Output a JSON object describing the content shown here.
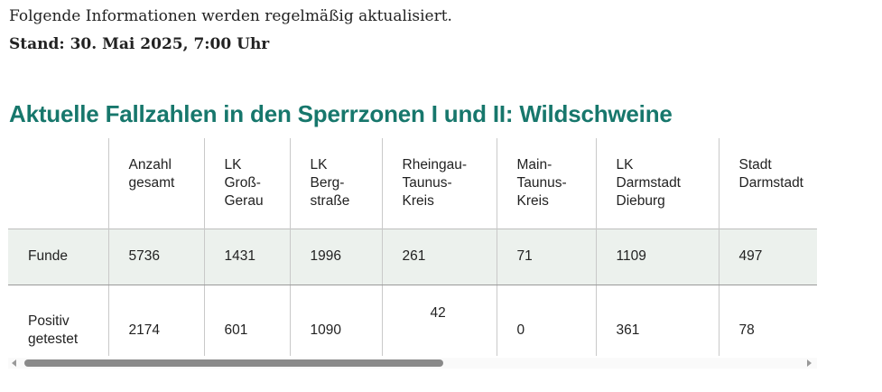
{
  "intro": "Folgende Informationen werden regelmäßig aktualisiert.",
  "stand": "Stand: 30. Mai 2025, 7:00 Uhr",
  "title": "Aktuelle Fallzahlen in den Sperrzonen I und II: Wildschweine",
  "table": {
    "headers": [
      "",
      "Anzahl\ngesamt",
      "LK\nGroß-\nGerau",
      "LK\nBerg-\nstraße",
      "Rheingau-\nTaunus-\nKreis",
      "Main-\nTaunus-\nKreis",
      "LK\nDarmstadt\nDieburg",
      "Stadt\nDarmstadt"
    ],
    "rows": [
      {
        "label": "Funde",
        "values": [
          "5736",
          "1431",
          "1996",
          "261",
          "71",
          "1109",
          "497"
        ]
      },
      {
        "label": "Positiv getestet",
        "values": [
          "2174",
          "601",
          "1090",
          "42",
          "0",
          "361",
          "78"
        ]
      }
    ]
  }
}
